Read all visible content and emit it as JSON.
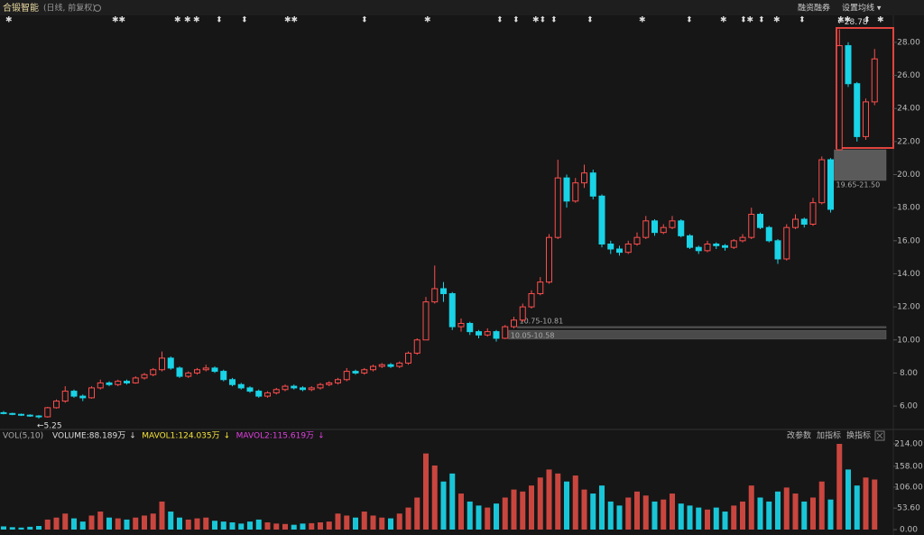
{
  "toolbar": [
    "融资融券",
    "设置均线 ▾"
  ],
  "indicator_buttons": [
    "改参数",
    "加指标",
    "换指标"
  ],
  "chart_data": [
    {
      "type": "candlestick",
      "title": "合锻智能",
      "subtitle": "(日线, 前复权)",
      "up_color": "#ff4d4d",
      "down_color": "#19d3e6",
      "ylim": [
        4.64,
        29.47
      ],
      "yticks": [
        {
          "value": 6,
          "label": "6.00"
        },
        {
          "value": 8,
          "label": "8.00"
        },
        {
          "value": 10,
          "label": "10.00"
        },
        {
          "value": 12,
          "label": "12.00"
        },
        {
          "value": 14,
          "label": "14.00"
        },
        {
          "value": 16,
          "label": "16.00"
        },
        {
          "value": 18,
          "label": "18.00"
        },
        {
          "value": 20,
          "label": "20.00"
        },
        {
          "value": 22,
          "label": "22.00"
        },
        {
          "value": 24,
          "label": "24.00"
        },
        {
          "value": 26,
          "label": "26.00"
        },
        {
          "value": 28,
          "label": "28.00"
        }
      ],
      "annotations": [
        {
          "text": "←5.25",
          "value": 5.25
        },
        {
          "text": "←28.78",
          "value": 28.78
        }
      ],
      "bands": [
        {
          "label": "10.75-10.81",
          "low": 10.75,
          "high": 10.81
        },
        {
          "label": "10.05-10.58",
          "low": 10.05,
          "high": 10.58
        },
        {
          "label": "19.65-21.50",
          "low": 19.65,
          "high": 21.5
        }
      ],
      "ohlc": [
        [
          5.6,
          5.7,
          5.5,
          5.55
        ],
        [
          5.55,
          5.6,
          5.45,
          5.5
        ],
        [
          5.5,
          5.55,
          5.4,
          5.45
        ],
        [
          5.45,
          5.5,
          5.35,
          5.4
        ],
        [
          5.4,
          5.45,
          5.25,
          5.35
        ],
        [
          5.35,
          5.95,
          5.3,
          5.9
        ],
        [
          5.9,
          6.4,
          5.85,
          6.3
        ],
        [
          6.3,
          7.2,
          6.2,
          6.9
        ],
        [
          6.9,
          7.0,
          6.5,
          6.6
        ],
        [
          6.6,
          6.7,
          6.3,
          6.5
        ],
        [
          6.5,
          7.2,
          6.45,
          7.1
        ],
        [
          7.1,
          7.6,
          7.0,
          7.4
        ],
        [
          7.4,
          7.5,
          7.2,
          7.3
        ],
        [
          7.3,
          7.6,
          7.2,
          7.5
        ],
        [
          7.5,
          7.6,
          7.3,
          7.4
        ],
        [
          7.4,
          7.8,
          7.35,
          7.7
        ],
        [
          7.7,
          8.0,
          7.6,
          7.9
        ],
        [
          7.9,
          8.3,
          7.8,
          8.2
        ],
        [
          8.2,
          9.3,
          8.1,
          8.9
        ],
        [
          8.9,
          9.0,
          8.2,
          8.3
        ],
        [
          8.3,
          8.4,
          7.7,
          7.8
        ],
        [
          7.8,
          8.1,
          7.7,
          8.0
        ],
        [
          8.0,
          8.3,
          7.9,
          8.2
        ],
        [
          8.2,
          8.5,
          8.1,
          8.3
        ],
        [
          8.3,
          8.4,
          8.0,
          8.1
        ],
        [
          8.1,
          8.2,
          7.5,
          7.6
        ],
        [
          7.6,
          7.7,
          7.2,
          7.3
        ],
        [
          7.3,
          7.4,
          7.0,
          7.1
        ],
        [
          7.1,
          7.2,
          6.8,
          6.9
        ],
        [
          6.9,
          7.0,
          6.5,
          6.6
        ],
        [
          6.6,
          6.9,
          6.5,
          6.8
        ],
        [
          6.8,
          7.1,
          6.7,
          7.0
        ],
        [
          7.0,
          7.3,
          6.9,
          7.2
        ],
        [
          7.2,
          7.3,
          7.0,
          7.1
        ],
        [
          7.1,
          7.2,
          6.9,
          7.0
        ],
        [
          7.0,
          7.2,
          6.9,
          7.1
        ],
        [
          7.1,
          7.4,
          7.0,
          7.3
        ],
        [
          7.3,
          7.5,
          7.2,
          7.4
        ],
        [
          7.4,
          7.7,
          7.3,
          7.6
        ],
        [
          7.6,
          8.3,
          7.5,
          8.1
        ],
        [
          8.1,
          8.2,
          7.9,
          8.0
        ],
        [
          8.0,
          8.3,
          7.9,
          8.2
        ],
        [
          8.2,
          8.5,
          8.1,
          8.4
        ],
        [
          8.4,
          8.6,
          8.3,
          8.5
        ],
        [
          8.5,
          8.6,
          8.3,
          8.4
        ],
        [
          8.4,
          8.7,
          8.3,
          8.6
        ],
        [
          8.6,
          9.3,
          8.5,
          9.2
        ],
        [
          9.2,
          10.1,
          9.1,
          10.0
        ],
        [
          10.0,
          12.6,
          10.0,
          12.3
        ],
        [
          12.3,
          14.5,
          12.2,
          13.1
        ],
        [
          13.1,
          13.5,
          12.3,
          12.8
        ],
        [
          12.8,
          12.9,
          10.6,
          10.8
        ],
        [
          10.8,
          11.3,
          10.5,
          11.0
        ],
        [
          11.0,
          11.1,
          10.3,
          10.5
        ],
        [
          10.5,
          10.6,
          10.1,
          10.3
        ],
        [
          10.3,
          10.7,
          10.2,
          10.5
        ],
        [
          10.5,
          10.6,
          9.9,
          10.1
        ],
        [
          10.1,
          10.9,
          10.05,
          10.8
        ],
        [
          10.8,
          11.4,
          10.7,
          11.2
        ],
        [
          11.2,
          12.2,
          11.1,
          12.0
        ],
        [
          12.0,
          13.0,
          11.9,
          12.8
        ],
        [
          12.8,
          13.8,
          12.7,
          13.5
        ],
        [
          13.5,
          16.4,
          13.4,
          16.2
        ],
        [
          16.2,
          20.9,
          16.1,
          19.8
        ],
        [
          19.8,
          20.0,
          18.0,
          18.4
        ],
        [
          18.4,
          19.8,
          18.3,
          19.5
        ],
        [
          19.5,
          20.6,
          19.2,
          20.1
        ],
        [
          20.1,
          20.3,
          18.5,
          18.7
        ],
        [
          18.7,
          18.8,
          15.6,
          15.8
        ],
        [
          15.8,
          16.0,
          15.2,
          15.5
        ],
        [
          15.5,
          15.7,
          15.1,
          15.3
        ],
        [
          15.3,
          16.0,
          15.2,
          15.8
        ],
        [
          15.8,
          16.5,
          15.7,
          16.2
        ],
        [
          16.2,
          17.5,
          16.1,
          17.2
        ],
        [
          17.2,
          17.3,
          16.3,
          16.5
        ],
        [
          16.5,
          17.0,
          16.4,
          16.8
        ],
        [
          16.8,
          17.5,
          16.7,
          17.2
        ],
        [
          17.2,
          17.3,
          16.2,
          16.3
        ],
        [
          16.3,
          16.4,
          15.5,
          15.6
        ],
        [
          15.6,
          15.7,
          15.2,
          15.4
        ],
        [
          15.4,
          16.0,
          15.3,
          15.8
        ],
        [
          15.8,
          15.9,
          15.5,
          15.7
        ],
        [
          15.7,
          15.8,
          15.4,
          15.6
        ],
        [
          15.6,
          16.1,
          15.5,
          16.0
        ],
        [
          16.0,
          16.4,
          15.9,
          16.2
        ],
        [
          16.2,
          18.0,
          16.1,
          17.6
        ],
        [
          17.6,
          17.7,
          16.7,
          16.8
        ],
        [
          16.8,
          16.9,
          15.9,
          16.0
        ],
        [
          16.0,
          16.1,
          14.6,
          14.9
        ],
        [
          14.9,
          17.0,
          14.8,
          16.8
        ],
        [
          16.8,
          17.6,
          16.7,
          17.3
        ],
        [
          17.3,
          17.4,
          16.8,
          17.0
        ],
        [
          17.0,
          18.6,
          16.9,
          18.3
        ],
        [
          18.3,
          21.1,
          18.2,
          20.9
        ],
        [
          20.9,
          21.0,
          17.7,
          17.9
        ],
        [
          21.5,
          28.78,
          21.5,
          27.8
        ],
        [
          27.8,
          28.0,
          25.3,
          25.5
        ],
        [
          25.5,
          25.6,
          22.0,
          22.3
        ],
        [
          22.3,
          24.6,
          22.1,
          24.4
        ],
        [
          24.4,
          27.6,
          24.2,
          27.0
        ]
      ]
    },
    {
      "type": "volume",
      "title": "VOL(5,10)",
      "legend": [
        {
          "name": "VOLUME:88.189万",
          "color": "#dddddd"
        },
        {
          "name": "MAVOL1:124.035万",
          "color": "#f5e33b"
        },
        {
          "name": "MAVOL2:115.619万",
          "color": "#e040e0"
        }
      ],
      "trend_mark": "↓",
      "ylim": [
        0,
        214
      ],
      "yticks": [
        {
          "value": 0,
          "label": "0.00"
        },
        {
          "value": 53.6,
          "label": "53.60"
        },
        {
          "value": 106,
          "label": "106.00"
        },
        {
          "value": 158,
          "label": "158.00"
        },
        {
          "value": 214,
          "label": "214.00"
        }
      ],
      "values": [
        8,
        6,
        5,
        7,
        9,
        25,
        30,
        40,
        28,
        20,
        35,
        45,
        30,
        28,
        25,
        30,
        35,
        40,
        70,
        45,
        30,
        25,
        28,
        30,
        22,
        20,
        18,
        15,
        20,
        25,
        18,
        15,
        14,
        12,
        15,
        16,
        18,
        20,
        40,
        35,
        30,
        45,
        35,
        30,
        28,
        40,
        55,
        80,
        190,
        160,
        120,
        140,
        90,
        70,
        60,
        55,
        65,
        80,
        100,
        95,
        110,
        130,
        150,
        140,
        120,
        135,
        100,
        90,
        110,
        70,
        60,
        80,
        95,
        85,
        70,
        75,
        90,
        65,
        60,
        55,
        50,
        55,
        45,
        60,
        70,
        110,
        80,
        70,
        95,
        105,
        90,
        70,
        80,
        120,
        75,
        214,
        150,
        110,
        130,
        125
      ]
    }
  ]
}
